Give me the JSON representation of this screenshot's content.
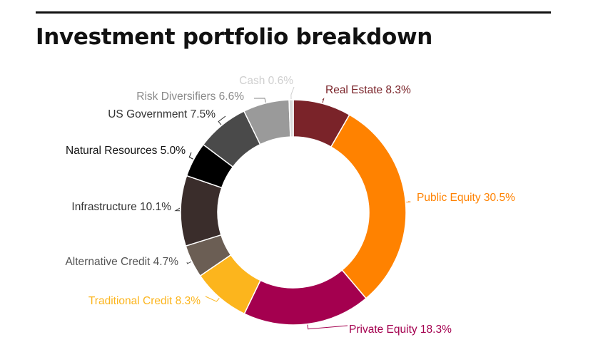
{
  "title": "Investment portfolio breakdown",
  "chart_data": {
    "type": "pie",
    "donut": true,
    "title": "Investment portfolio breakdown",
    "slices": [
      {
        "label": "Real Estate",
        "value": 8.3,
        "display": "Real Estate 8.3%",
        "color": "#7a2329",
        "label_color": "#7a2329"
      },
      {
        "label": "Public Equity",
        "value": 30.5,
        "display": "Public Equity 30.5%",
        "color": "#ff8200",
        "label_color": "#ff8200"
      },
      {
        "label": "Private Equity",
        "value": 18.3,
        "display": "Private Equity 18.3%",
        "color": "#a4004f",
        "label_color": "#a4004f"
      },
      {
        "label": "Traditional Credit",
        "value": 8.3,
        "display": "Traditional Credit 8.3%",
        "color": "#fcb51d",
        "label_color": "#fcb51d"
      },
      {
        "label": "Alternative Credit",
        "value": 4.7,
        "display": "Alternative Credit 4.7%",
        "color": "#6b5e54",
        "label_color": "#555555"
      },
      {
        "label": "Infrastructure",
        "value": 10.1,
        "display": "Infrastructure 10.1%",
        "color": "#3a2d2b",
        "label_color": "#333333"
      },
      {
        "label": "Natural Resources",
        "value": 5.0,
        "display": "Natural Resources 5.0%",
        "color": "#000000",
        "label_color": "#111111"
      },
      {
        "label": "US Government",
        "value": 7.5,
        "display": "US Government 7.5%",
        "color": "#4a4a4a",
        "label_color": "#333333"
      },
      {
        "label": "Risk Diversifiers",
        "value": 6.6,
        "display": "Risk Diversifiers 6.6%",
        "color": "#9a9a9a",
        "label_color": "#8a8a8a"
      },
      {
        "label": "Cash",
        "value": 0.6,
        "display": "Cash 0.6%",
        "color": "#dadada",
        "label_color": "#cfcfcf"
      }
    ]
  }
}
